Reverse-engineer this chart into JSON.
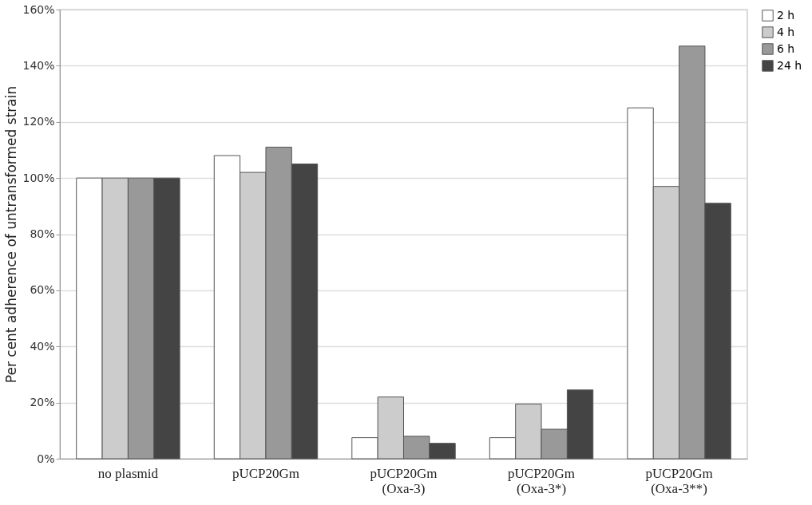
{
  "chart_data": {
    "type": "bar",
    "ylabel": "Per cent adherence of untransformed strain",
    "categories": [
      "no plasmid",
      "pUCP20Gm",
      "pUCP20Gm\n(Oxa-3)",
      "pUCP20Gm\n(Oxa-3*)",
      "pUCP20Gm\n(Oxa-3**)"
    ],
    "series": [
      {
        "name": "2 h",
        "color": "#ffffff",
        "values": [
          100,
          108,
          7.5,
          7.5,
          125
        ]
      },
      {
        "name": "4 h",
        "color": "#cccccc",
        "values": [
          100,
          102,
          22,
          19.5,
          97
        ]
      },
      {
        "name": "6 h",
        "color": "#999999",
        "values": [
          100,
          111,
          8,
          10.5,
          147
        ]
      },
      {
        "name": "24 h",
        "color": "#444444",
        "values": [
          100,
          105,
          5.5,
          24.5,
          91
        ]
      }
    ],
    "ylim": [
      0,
      160
    ],
    "yticks": [
      {
        "value": 0,
        "label": "0%"
      },
      {
        "value": 20,
        "label": "20%"
      },
      {
        "value": 40,
        "label": "40%"
      },
      {
        "value": 60,
        "label": "60%"
      },
      {
        "value": 80,
        "label": "80%"
      },
      {
        "value": 100,
        "label": "100%"
      },
      {
        "value": 120,
        "label": "120%"
      },
      {
        "value": 140,
        "label": "140%"
      },
      {
        "value": 160,
        "label": "160%"
      }
    ],
    "grid": "y",
    "legend": "right"
  }
}
